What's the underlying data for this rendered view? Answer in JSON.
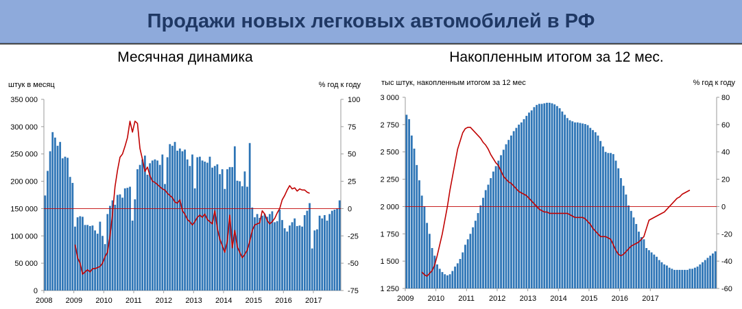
{
  "banner": {
    "title": "Продажи новых легковых автомобилей в РФ"
  },
  "colors": {
    "bars": "#2e75b6",
    "line": "#c00000",
    "zero": "#c00000",
    "banner_bg": "#8eaadb",
    "banner_text": "#1f3864"
  },
  "chart_data": [
    {
      "type": "bar+line",
      "title": "Месячная динамика",
      "ylabel": "штук в месяц",
      "y2label": "% год к году",
      "ylim": [
        0,
        350000
      ],
      "y2lim": [
        -75,
        100
      ],
      "yticks": [
        0,
        50000,
        100000,
        150000,
        200000,
        250000,
        300000,
        350000
      ],
      "yticklabels": [
        "0",
        "50 000",
        "100 000",
        "150 000",
        "200 000",
        "250 000",
        "300 000",
        "350 000"
      ],
      "y2ticks": [
        -75,
        -50,
        -25,
        0,
        25,
        50,
        75,
        100
      ],
      "y2ticklabels": [
        "-75",
        "-50",
        "-25",
        "0",
        "25",
        "50",
        "75",
        "100"
      ],
      "x_start": "2008-01",
      "xticklabels": [
        "2008",
        "2009",
        "2010",
        "2011",
        "2012",
        "2013",
        "2014",
        "2015",
        "2016",
        "2017"
      ],
      "series": [
        {
          "kind": "bar",
          "axis": "left",
          "values": [
            174000,
            219000,
            255000,
            290000,
            280000,
            265000,
            272000,
            242000,
            245000,
            243000,
            208000,
            197000,
            117000,
            134000,
            136000,
            135000,
            120000,
            120000,
            118000,
            119000,
            110000,
            104000,
            126000,
            100000,
            85000,
            140000,
            155000,
            165000,
            157000,
            175000,
            176000,
            170000,
            187000,
            188000,
            190000,
            128000,
            167000,
            222000,
            230000,
            240000,
            247000,
            212000,
            233000,
            238000,
            240000,
            238000,
            230000,
            249000,
            195000,
            244000,
            268000,
            265000,
            272000,
            256000,
            260000,
            255000,
            258000,
            240000,
            228000,
            249000,
            187000,
            244000,
            245000,
            238000,
            236000,
            234000,
            245000,
            225000,
            228000,
            231000,
            213000,
            222000,
            186000,
            222000,
            226000,
            226000,
            264000,
            201000,
            200000,
            191000,
            218000,
            190000,
            270000,
            152000,
            134000,
            140000,
            133000,
            137000,
            140000,
            135000,
            140000,
            145000,
            125000,
            127000,
            148000,
            129000,
            114000,
            108000,
            119000,
            125000,
            132000,
            118000,
            119000,
            117000,
            138000,
            146000,
            160000,
            77000,
            110000,
            112000,
            137000,
            132000,
            138000,
            128000,
            140000,
            146000,
            148000,
            150000,
            165000
          ]
        },
        {
          "kind": "line",
          "axis": "right",
          "values": [
            -33,
            -45,
            -50,
            -60,
            -58,
            -56,
            -58,
            -55,
            -55,
            -54,
            -53,
            -50,
            -44,
            -40,
            -25,
            -5,
            20,
            35,
            47,
            50,
            57,
            65,
            80,
            70,
            80,
            78,
            55,
            45,
            34,
            38,
            30,
            25,
            24,
            22,
            20,
            18,
            17,
            14,
            12,
            10,
            6,
            5,
            8,
            -2,
            -5,
            -10,
            -12,
            -15,
            -12,
            -8,
            -6,
            -8,
            -5,
            -10,
            -12,
            -14,
            -2,
            -18,
            -28,
            -34,
            -40,
            -30,
            -6,
            -36,
            -20,
            -35,
            -40,
            -45,
            -42,
            -38,
            -30,
            -20,
            -15,
            -14,
            -13,
            -2,
            -5,
            -11,
            -14,
            -12,
            -9,
            -4,
            0,
            8,
            12,
            17,
            21,
            18,
            19,
            16,
            18,
            17,
            17,
            15,
            14
          ]
        }
      ],
      "line_start": "2009-01"
    },
    {
      "type": "bar+line",
      "title": "Накопленным итогом за 12 мес.",
      "ylabel": "тыс штук, накопленным итогом за 12 мес",
      "y2label": "% год к году",
      "ylim": [
        1250,
        3000
      ],
      "y2lim": [
        -60,
        80
      ],
      "yticks": [
        1250,
        1500,
        1750,
        2000,
        2250,
        2500,
        2750,
        3000
      ],
      "yticklabels": [
        "1 250",
        "1 500",
        "1 750",
        "2 000",
        "2 250",
        "2 500",
        "2 750",
        "3 000"
      ],
      "y2ticks": [
        -60,
        -40,
        -20,
        0,
        20,
        40,
        60,
        80
      ],
      "y2ticklabels": [
        "-60",
        "-40",
        "-20",
        "0",
        "20",
        "40",
        "60",
        "80"
      ],
      "x_start": "2009-01",
      "xticklabels": [
        "2009",
        "2010",
        "2011",
        "2012",
        "2013",
        "2014",
        "2015",
        "2016",
        "2017"
      ],
      "series": [
        {
          "kind": "bar",
          "axis": "left",
          "values": [
            2840,
            2800,
            2650,
            2530,
            2380,
            2240,
            2100,
            2000,
            1850,
            1750,
            1620,
            1550,
            1470,
            1430,
            1400,
            1380,
            1370,
            1380,
            1410,
            1450,
            1480,
            1520,
            1580,
            1650,
            1700,
            1750,
            1810,
            1870,
            1940,
            2010,
            2080,
            2150,
            2200,
            2260,
            2320,
            2370,
            2420,
            2470,
            2520,
            2570,
            2610,
            2650,
            2690,
            2720,
            2750,
            2770,
            2800,
            2830,
            2860,
            2880,
            2910,
            2930,
            2940,
            2940,
            2945,
            2950,
            2950,
            2945,
            2935,
            2920,
            2900,
            2870,
            2840,
            2810,
            2790,
            2780,
            2770,
            2770,
            2765,
            2760,
            2755,
            2745,
            2720,
            2700,
            2680,
            2650,
            2600,
            2550,
            2500,
            2490,
            2490,
            2480,
            2420,
            2350,
            2260,
            2190,
            2110,
            2010,
            1960,
            1900,
            1840,
            1770,
            1720,
            1700,
            1620,
            1600,
            1580,
            1560,
            1540,
            1510,
            1490,
            1470,
            1460,
            1440,
            1430,
            1420,
            1420,
            1420,
            1420,
            1420,
            1420,
            1430,
            1430,
            1440,
            1450,
            1470,
            1490,
            1510,
            1530,
            1550,
            1570,
            1590
          ]
        },
        {
          "kind": "line",
          "axis": "right",
          "values": [
            -48,
            -50,
            -51,
            -49,
            -47,
            -43,
            -36,
            -28,
            -20,
            -10,
            0,
            12,
            22,
            32,
            42,
            48,
            54,
            57,
            58,
            58,
            56,
            54,
            52,
            50,
            47,
            45,
            42,
            38,
            35,
            32,
            30,
            26,
            22,
            20,
            18,
            17,
            15,
            13,
            11,
            10,
            9,
            8,
            6,
            4,
            2,
            0,
            -2,
            -3,
            -4,
            -4,
            -5,
            -5,
            -5,
            -5,
            -5,
            -5,
            -5,
            -5,
            -6,
            -7,
            -8,
            -8,
            -8,
            -8,
            -9,
            -11,
            -13,
            -16,
            -18,
            -20,
            -22,
            -22,
            -22,
            -23,
            -24,
            -28,
            -32,
            -35,
            -36,
            -35,
            -33,
            -31,
            -29,
            -28,
            -27,
            -26,
            -24,
            -22,
            -16,
            -10,
            -9,
            -8,
            -7,
            -6,
            -5,
            -4,
            -2,
            0,
            2,
            4,
            6,
            7,
            9,
            10,
            11,
            12
          ]
        }
      ],
      "line_start": "2009-07"
    }
  ]
}
